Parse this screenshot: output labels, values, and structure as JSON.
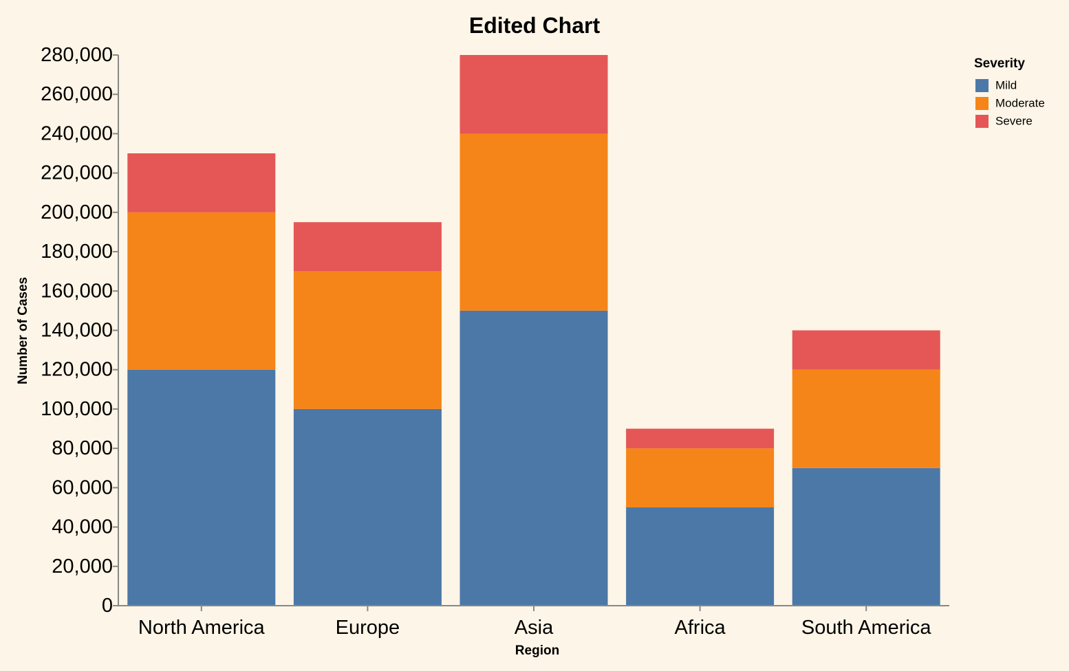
{
  "chart_data": {
    "type": "bar",
    "stacked": true,
    "title": "Edited Chart",
    "xlabel": "Region",
    "ylabel": "Number of Cases",
    "categories": [
      "North America",
      "Europe",
      "Asia",
      "Africa",
      "South America"
    ],
    "series": [
      {
        "name": "Mild",
        "color": "#4c78a8",
        "values": [
          120000,
          100000,
          150000,
          50000,
          70000
        ]
      },
      {
        "name": "Moderate",
        "color": "#f58518",
        "values": [
          80000,
          70000,
          90000,
          30000,
          50000
        ]
      },
      {
        "name": "Severe",
        "color": "#e45756",
        "values": [
          30000,
          25000,
          40000,
          10000,
          20000
        ]
      }
    ],
    "ylim": [
      0,
      280000
    ],
    "yticks": [
      0,
      20000,
      40000,
      60000,
      80000,
      100000,
      120000,
      140000,
      160000,
      180000,
      200000,
      220000,
      240000,
      260000,
      280000
    ],
    "ytick_labels": [
      "0",
      "20,000",
      "40,000",
      "60,000",
      "80,000",
      "100,000",
      "120,000",
      "140,000",
      "160,000",
      "180,000",
      "200,000",
      "220,000",
      "240,000",
      "260,000",
      "280,000"
    ],
    "grid": false,
    "legend": {
      "title": "Severity",
      "placement": "top-right"
    }
  }
}
